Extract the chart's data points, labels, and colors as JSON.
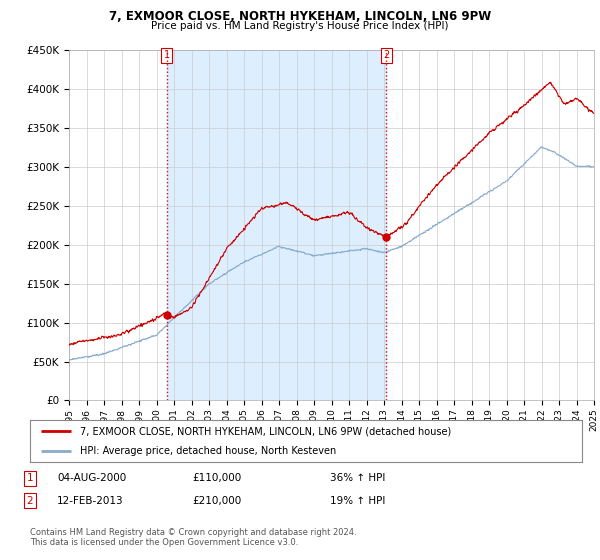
{
  "title": "7, EXMOOR CLOSE, NORTH HYKEHAM, LINCOLN, LN6 9PW",
  "subtitle": "Price paid vs. HM Land Registry's House Price Index (HPI)",
  "legend_line1": "7, EXMOOR CLOSE, NORTH HYKEHAM, LINCOLN, LN6 9PW (detached house)",
  "legend_line2": "HPI: Average price, detached house, North Kesteven",
  "transaction1_date": "04-AUG-2000",
  "transaction1_price": "£110,000",
  "transaction1_hpi": "36% ↑ HPI",
  "transaction2_date": "12-FEB-2013",
  "transaction2_price": "£210,000",
  "transaction2_hpi": "19% ↑ HPI",
  "footer": "Contains HM Land Registry data © Crown copyright and database right 2024.\nThis data is licensed under the Open Government Licence v3.0.",
  "vline1_x": 2000.58,
  "vline2_x": 2013.12,
  "marker1_x": 2000.58,
  "marker1_y": 110000,
  "marker2_x": 2013.12,
  "marker2_y": 210000,
  "xlim": [
    1995,
    2025
  ],
  "ylim": [
    0,
    450000
  ],
  "yticks": [
    0,
    50000,
    100000,
    150000,
    200000,
    250000,
    300000,
    350000,
    400000,
    450000
  ],
  "red_color": "#cc0000",
  "blue_color": "#88aacc",
  "shade_color": "#ddeeff",
  "vline_color": "#cc0000",
  "background_color": "#ffffff",
  "grid_color": "#cccccc"
}
